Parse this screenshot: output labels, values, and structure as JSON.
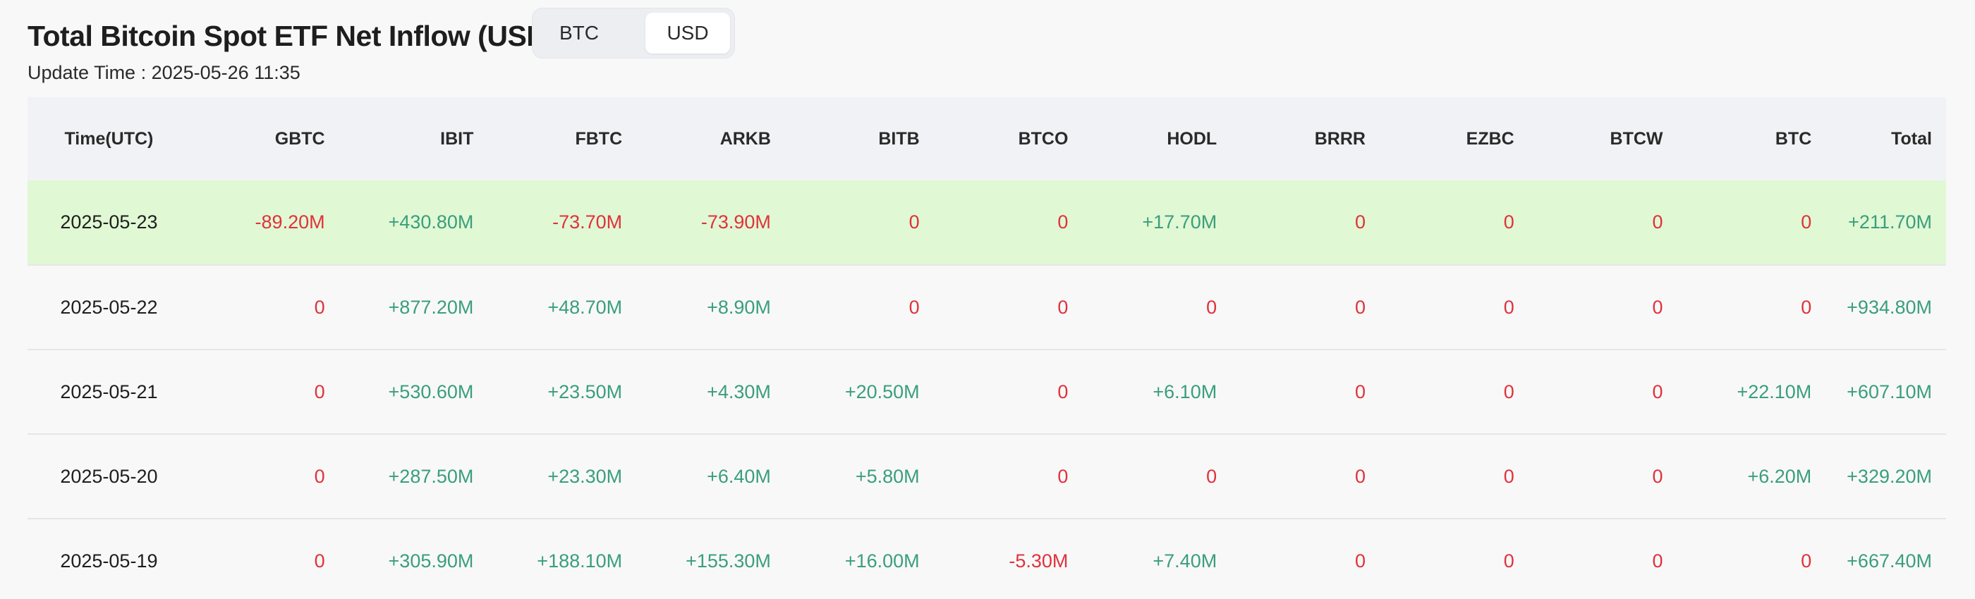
{
  "header": {
    "title": "Total Bitcoin Spot ETF Net Inflow (USD)",
    "toggle": {
      "options": [
        "BTC",
        "USD"
      ],
      "selected": "USD"
    },
    "update_time": "Update Time : 2025-05-26 11:35"
  },
  "colors": {
    "positive": "#3a9e7d",
    "negative": "#e0323c",
    "highlight_row": "#e0f8d3"
  },
  "table": {
    "columns": [
      "Time(UTC)",
      "GBTC",
      "IBIT",
      "FBTC",
      "ARKB",
      "BITB",
      "BTCO",
      "HODL",
      "BRRR",
      "EZBC",
      "BTCW",
      "BTC",
      "Total"
    ],
    "rows": [
      {
        "date": "2025-05-23",
        "cells": [
          "-89.20M",
          "+430.80M",
          "-73.70M",
          "-73.90M",
          "0",
          "0",
          "+17.70M",
          "0",
          "0",
          "0",
          "0",
          "+211.70M"
        ]
      },
      {
        "date": "2025-05-22",
        "cells": [
          "0",
          "+877.20M",
          "+48.70M",
          "+8.90M",
          "0",
          "0",
          "0",
          "0",
          "0",
          "0",
          "0",
          "+934.80M"
        ]
      },
      {
        "date": "2025-05-21",
        "cells": [
          "0",
          "+530.60M",
          "+23.50M",
          "+4.30M",
          "+20.50M",
          "0",
          "+6.10M",
          "0",
          "0",
          "0",
          "+22.10M",
          "+607.10M"
        ]
      },
      {
        "date": "2025-05-20",
        "cells": [
          "0",
          "+287.50M",
          "+23.30M",
          "+6.40M",
          "+5.80M",
          "0",
          "0",
          "0",
          "0",
          "0",
          "+6.20M",
          "+329.20M"
        ]
      },
      {
        "date": "2025-05-19",
        "cells": [
          "0",
          "+305.90M",
          "+188.10M",
          "+155.30M",
          "+16.00M",
          "-5.30M",
          "+7.40M",
          "0",
          "0",
          "0",
          "0",
          "+667.40M"
        ]
      }
    ]
  }
}
